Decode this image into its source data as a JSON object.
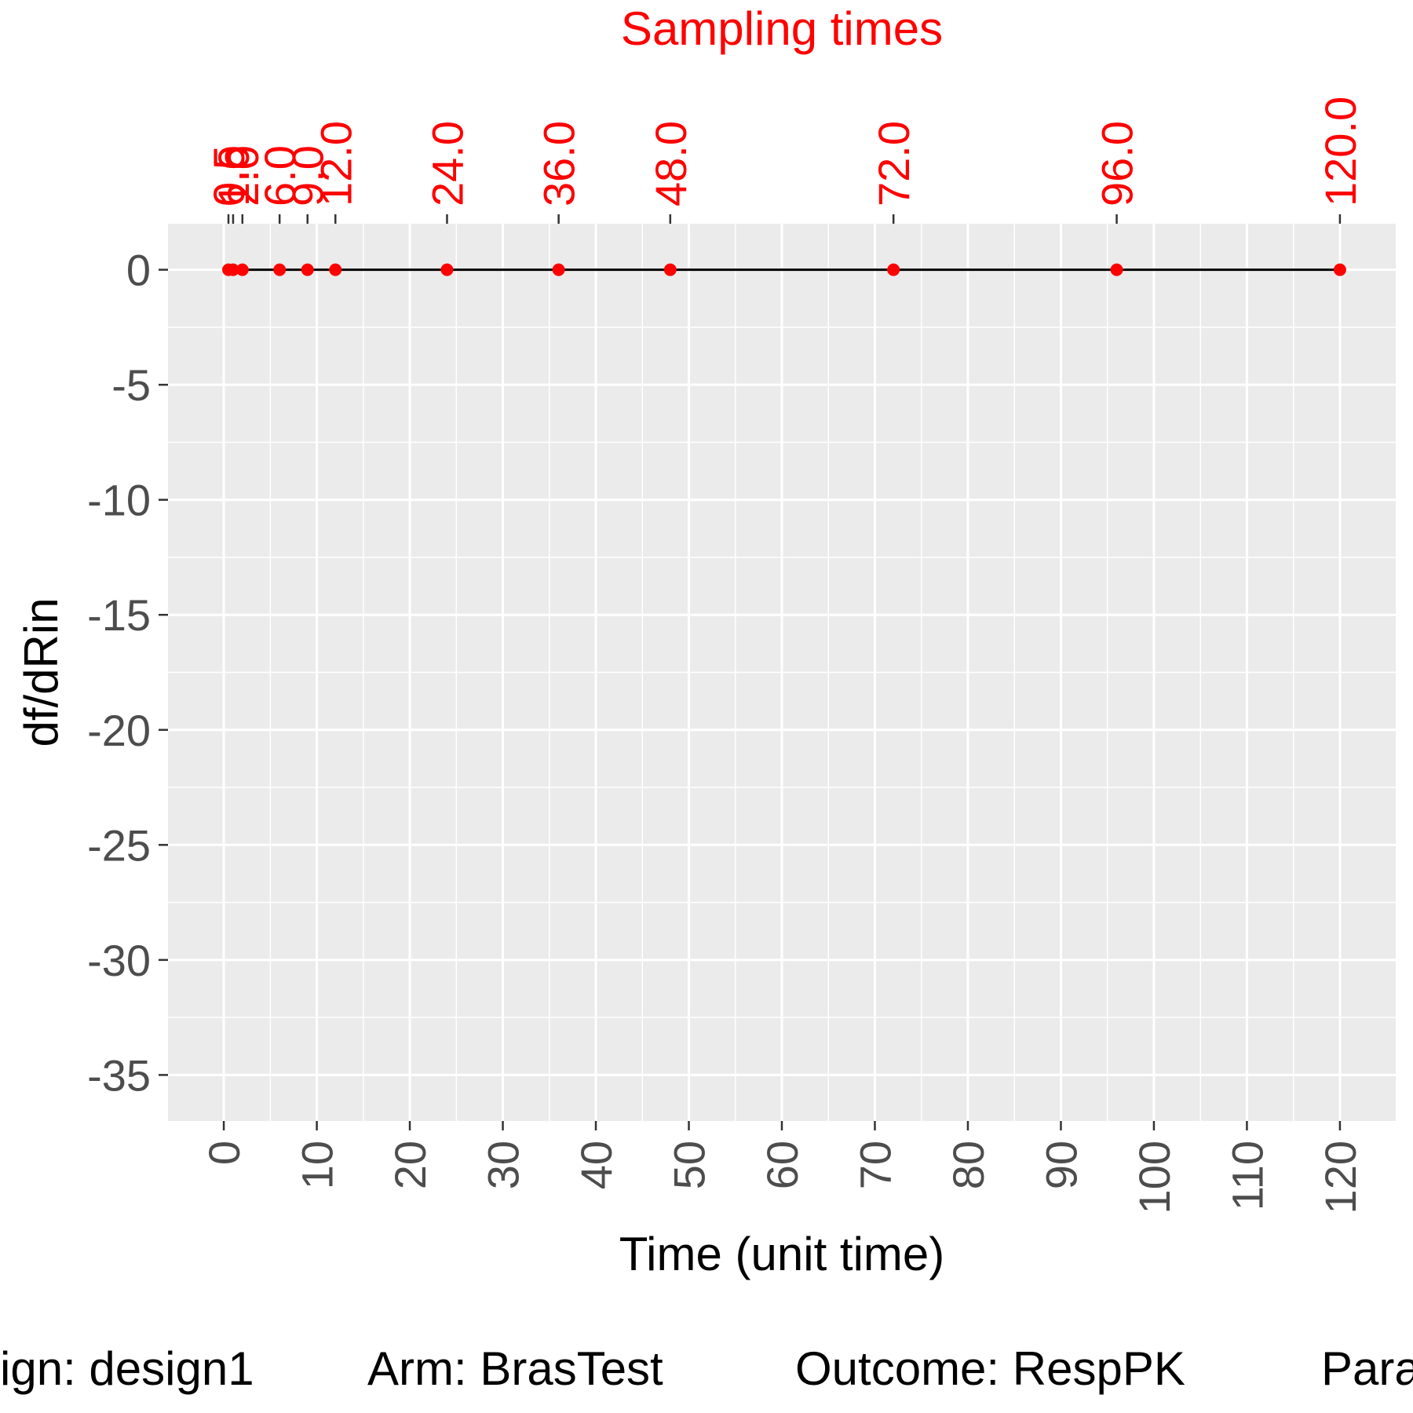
{
  "chart_data": {
    "type": "line",
    "title": "",
    "top_axis_title": "Sampling times",
    "xlabel": "Time (unit time)",
    "ylabel": "df/dRin",
    "xlim": [
      -6,
      126
    ],
    "ylim": [
      -37,
      2
    ],
    "x_ticks": [
      0,
      10,
      20,
      30,
      40,
      50,
      60,
      70,
      80,
      90,
      100,
      110,
      120
    ],
    "x_tick_labels": [
      "0",
      "10",
      "20",
      "30",
      "40",
      "50",
      "60",
      "70",
      "80",
      "90",
      "100",
      "110",
      "120"
    ],
    "y_ticks": [
      0,
      -5,
      -10,
      -15,
      -20,
      -25,
      -30,
      -35
    ],
    "y_tick_labels": [
      "0",
      "-5",
      "-10",
      "-15",
      "-20",
      "-25",
      "-30",
      "-35"
    ],
    "sampling_times": [
      0.5,
      1.0,
      2.0,
      6.0,
      9.0,
      12.0,
      24.0,
      36.0,
      48.0,
      72.0,
      96.0,
      120.0
    ],
    "sampling_time_labels": [
      "0.5",
      "1.0",
      "2.0",
      "6.0",
      "9.0",
      "12.0",
      "24.0",
      "36.0",
      "48.0",
      "72.0",
      "96.0",
      "120.0"
    ],
    "series": [
      {
        "x": [
          0,
          0.5,
          1.0,
          2.0,
          6.0,
          9.0,
          12.0,
          24.0,
          36.0,
          48.0,
          72.0,
          96.0,
          120.0
        ],
        "y": [
          0,
          0,
          0,
          0,
          0,
          0,
          0,
          0,
          0,
          0,
          0,
          0,
          0
        ]
      }
    ],
    "points": {
      "x": [
        0.5,
        1.0,
        2.0,
        6.0,
        9.0,
        12.0,
        24.0,
        36.0,
        48.0,
        72.0,
        96.0,
        120.0
      ],
      "y": [
        0,
        0,
        0,
        0,
        0,
        0,
        0,
        0,
        0,
        0,
        0,
        0
      ]
    },
    "grid": true,
    "caption_items": [
      "ign: design1",
      "Arm: BrasTest",
      "Outcome: RespPK",
      "Para"
    ]
  },
  "colors": {
    "panel_background": "#ebebeb",
    "grid": "#ffffff",
    "line": "#000000",
    "points": "#ff0000",
    "sampling_labels": "#ff0000",
    "tick_text": "#4d4d4d"
  }
}
